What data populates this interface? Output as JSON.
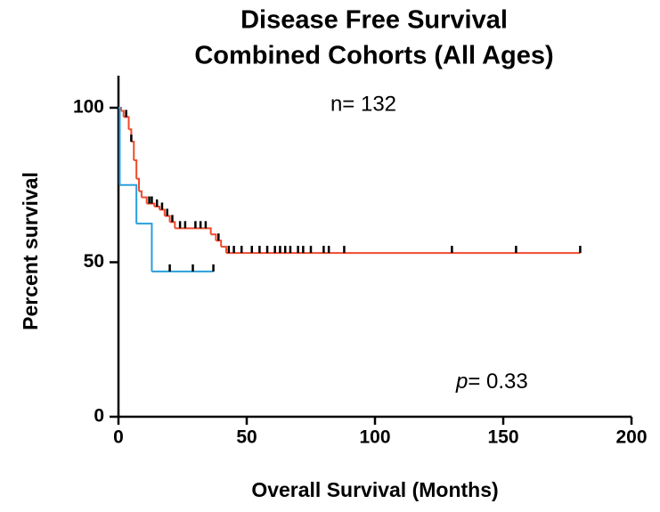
{
  "chart_data": {
    "type": "survival",
    "title": [
      "Disease Free Survival",
      "Combined Cohorts (All Ages)"
    ],
    "annotation_n": "n= 132",
    "annotation_p": {
      "symbol": "p",
      "text": "= 0.33"
    },
    "xlabel": "Overall Survival (Months)",
    "ylabel": "Percent survival",
    "xlim": [
      0,
      200
    ],
    "xticks": [
      0,
      50,
      100,
      150,
      200
    ],
    "ylim": [
      0,
      100
    ],
    "yticks": [
      0,
      50,
      100
    ],
    "series": [
      {
        "color": "#ef4a2c",
        "x": [
          0,
          1,
          2,
          4,
          5,
          6,
          7,
          8,
          9,
          11,
          14,
          16,
          18,
          20,
          22,
          36,
          38,
          40,
          42,
          180
        ],
        "values": [
          100,
          99,
          97,
          93,
          89,
          83,
          77,
          73,
          71,
          69,
          68,
          67,
          65,
          63,
          61,
          59,
          57,
          55,
          53,
          53
        ],
        "censored": {
          "x": [
            3,
            5,
            12,
            13,
            15,
            17,
            19,
            21,
            24,
            26,
            30,
            32,
            34,
            39,
            43,
            45,
            48,
            52,
            55,
            58,
            61,
            63,
            65,
            67,
            70,
            72,
            75,
            80,
            82,
            88,
            130,
            155,
            180
          ],
          "values": [
            97,
            89,
            69,
            69,
            68,
            67,
            65,
            63,
            61,
            61,
            61,
            61,
            61,
            57,
            53,
            53,
            53,
            53,
            53,
            53,
            53,
            53,
            53,
            53,
            53,
            53,
            53,
            53,
            53,
            53,
            53,
            53,
            53
          ]
        }
      },
      {
        "color": "#2a9fdc",
        "x": [
          0,
          0.5,
          7,
          13,
          37
        ],
        "values": [
          100,
          75,
          62.5,
          47,
          47
        ],
        "censored": {
          "x": [
            20,
            29,
            37
          ],
          "values": [
            47,
            47,
            47
          ]
        }
      }
    ]
  }
}
